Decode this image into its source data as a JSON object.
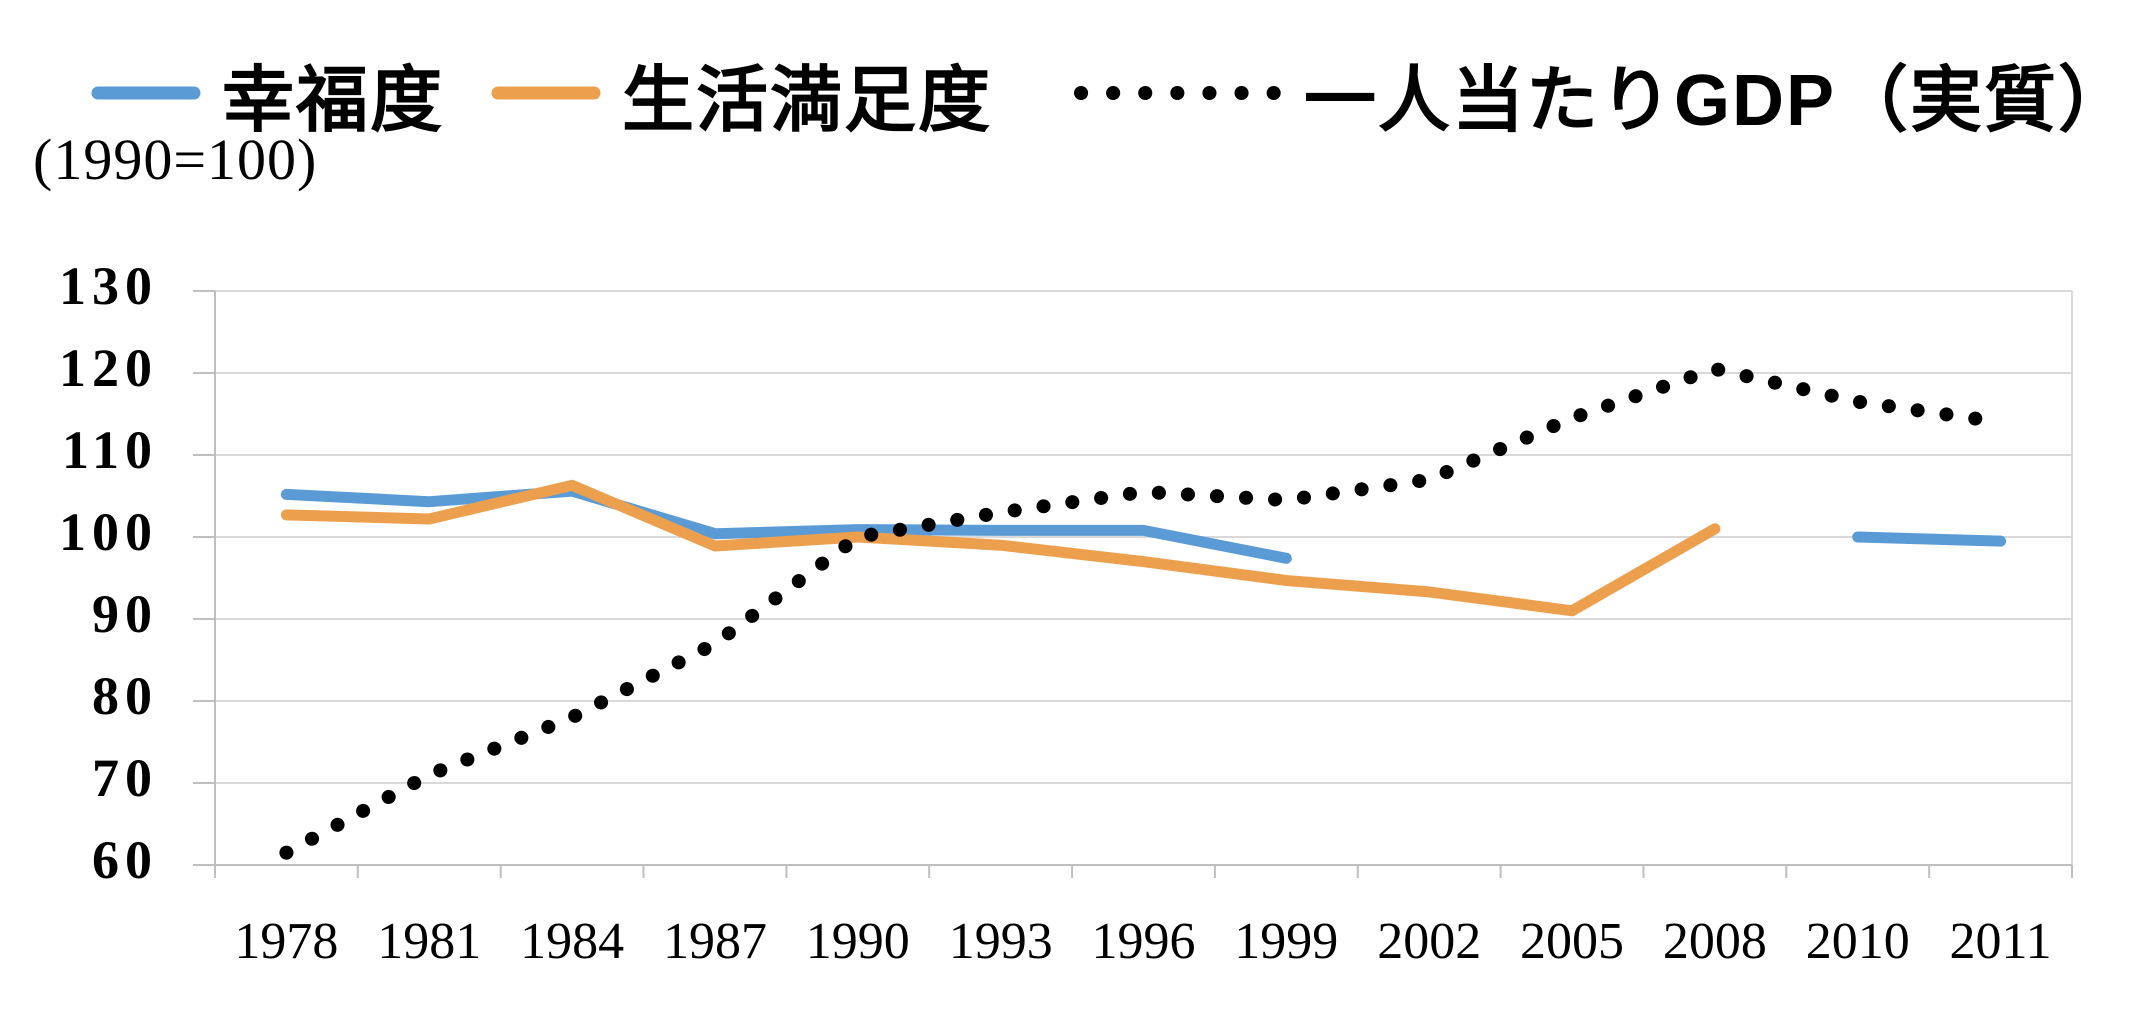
{
  "page": {
    "background": "#FFFFFF"
  },
  "chart_data": {
    "type": "line",
    "title": "",
    "subtitle": "(1990=100)",
    "categories": [
      "1978",
      "1981",
      "1984",
      "1987",
      "1990",
      "1993",
      "1996",
      "1999",
      "2002",
      "2005",
      "2008",
      "2010",
      "2011"
    ],
    "y_ticks": [
      130,
      120,
      110,
      100,
      90,
      80,
      70,
      60
    ],
    "ylim": [
      60,
      130
    ],
    "grid": true,
    "legend_position": "top",
    "series": [
      {
        "name": "幸福度",
        "color": "#5B9BD5",
        "line_style": "solid",
        "values": [
          105.2,
          104.3,
          105.6,
          100.4,
          100.9,
          100.8,
          100.8,
          97.4,
          null,
          null,
          null,
          100,
          99.5
        ]
      },
      {
        "name": "生活満足度",
        "color": "#ECA04E",
        "line_style": "solid",
        "values": [
          102.7,
          102.2,
          106.3,
          98.9,
          100,
          99,
          97,
          94.7,
          93.3,
          91,
          101,
          null,
          null
        ]
      },
      {
        "name": "一人当たりGDP（実質）",
        "color": "#000000",
        "line_style": "dotted",
        "values": [
          61.5,
          71,
          78,
          87,
          100,
          103,
          105.5,
          104.5,
          107,
          114.5,
          120.5,
          116.5,
          114
        ]
      }
    ],
    "colors": {
      "grid": "#D9D9D9",
      "axis": "#BFBFBF",
      "text": "#000000"
    }
  }
}
